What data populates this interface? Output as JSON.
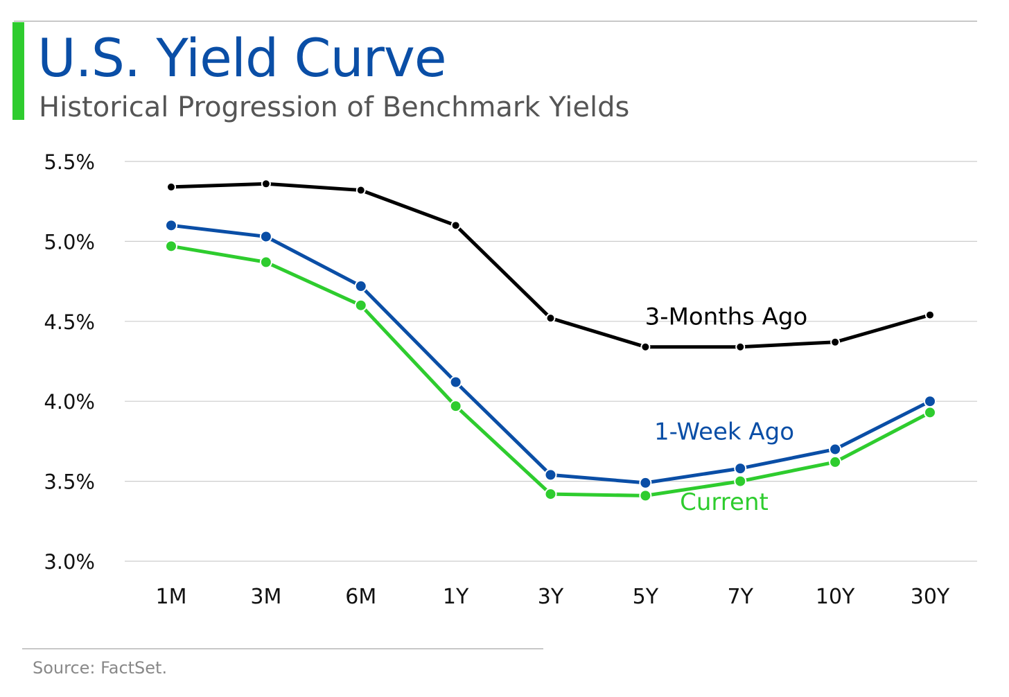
{
  "header": {
    "title": "U.S. Yield Curve",
    "subtitle": "Historical Progression of Benchmark Yields"
  },
  "footer": {
    "source": "Source: FactSet."
  },
  "colors": {
    "accent": "#2ecc2e",
    "title": "#0a4ea6",
    "subtitle": "#555555",
    "source": "#888888",
    "grid": "#cccccc",
    "axis_text": "#111111",
    "series_3m": "#000000",
    "series_1w": "#0a4ea6",
    "series_current": "#2ecc2e"
  },
  "chart_data": {
    "type": "line",
    "title": "U.S. Yield Curve",
    "subtitle": "Historical Progression of Benchmark Yields",
    "categories": [
      "1M",
      "3M",
      "6M",
      "1Y",
      "3Y",
      "5Y",
      "7Y",
      "10Y",
      "30Y"
    ],
    "y_tick_labels": [
      "3.0%",
      "3.5%",
      "4.0%",
      "4.5%",
      "5.0%",
      "5.5%"
    ],
    "y_ticks": [
      3.0,
      3.5,
      4.0,
      4.5,
      5.0,
      5.5
    ],
    "ylim": [
      3.0,
      5.5
    ],
    "grid": true,
    "legend": "inline labels",
    "series": [
      {
        "name": "3-Months Ago",
        "color": "#000000",
        "values": [
          5.34,
          5.36,
          5.32,
          5.1,
          4.52,
          4.34,
          4.34,
          4.37,
          4.54
        ]
      },
      {
        "name": "1-Week Ago",
        "color": "#0a4ea6",
        "values": [
          5.1,
          5.03,
          4.72,
          4.12,
          3.54,
          3.49,
          3.58,
          3.7,
          4.0
        ]
      },
      {
        "name": "Current",
        "color": "#2ecc2e",
        "values": [
          4.97,
          4.87,
          4.6,
          3.97,
          3.42,
          3.41,
          3.5,
          3.62,
          3.93
        ]
      }
    ]
  }
}
